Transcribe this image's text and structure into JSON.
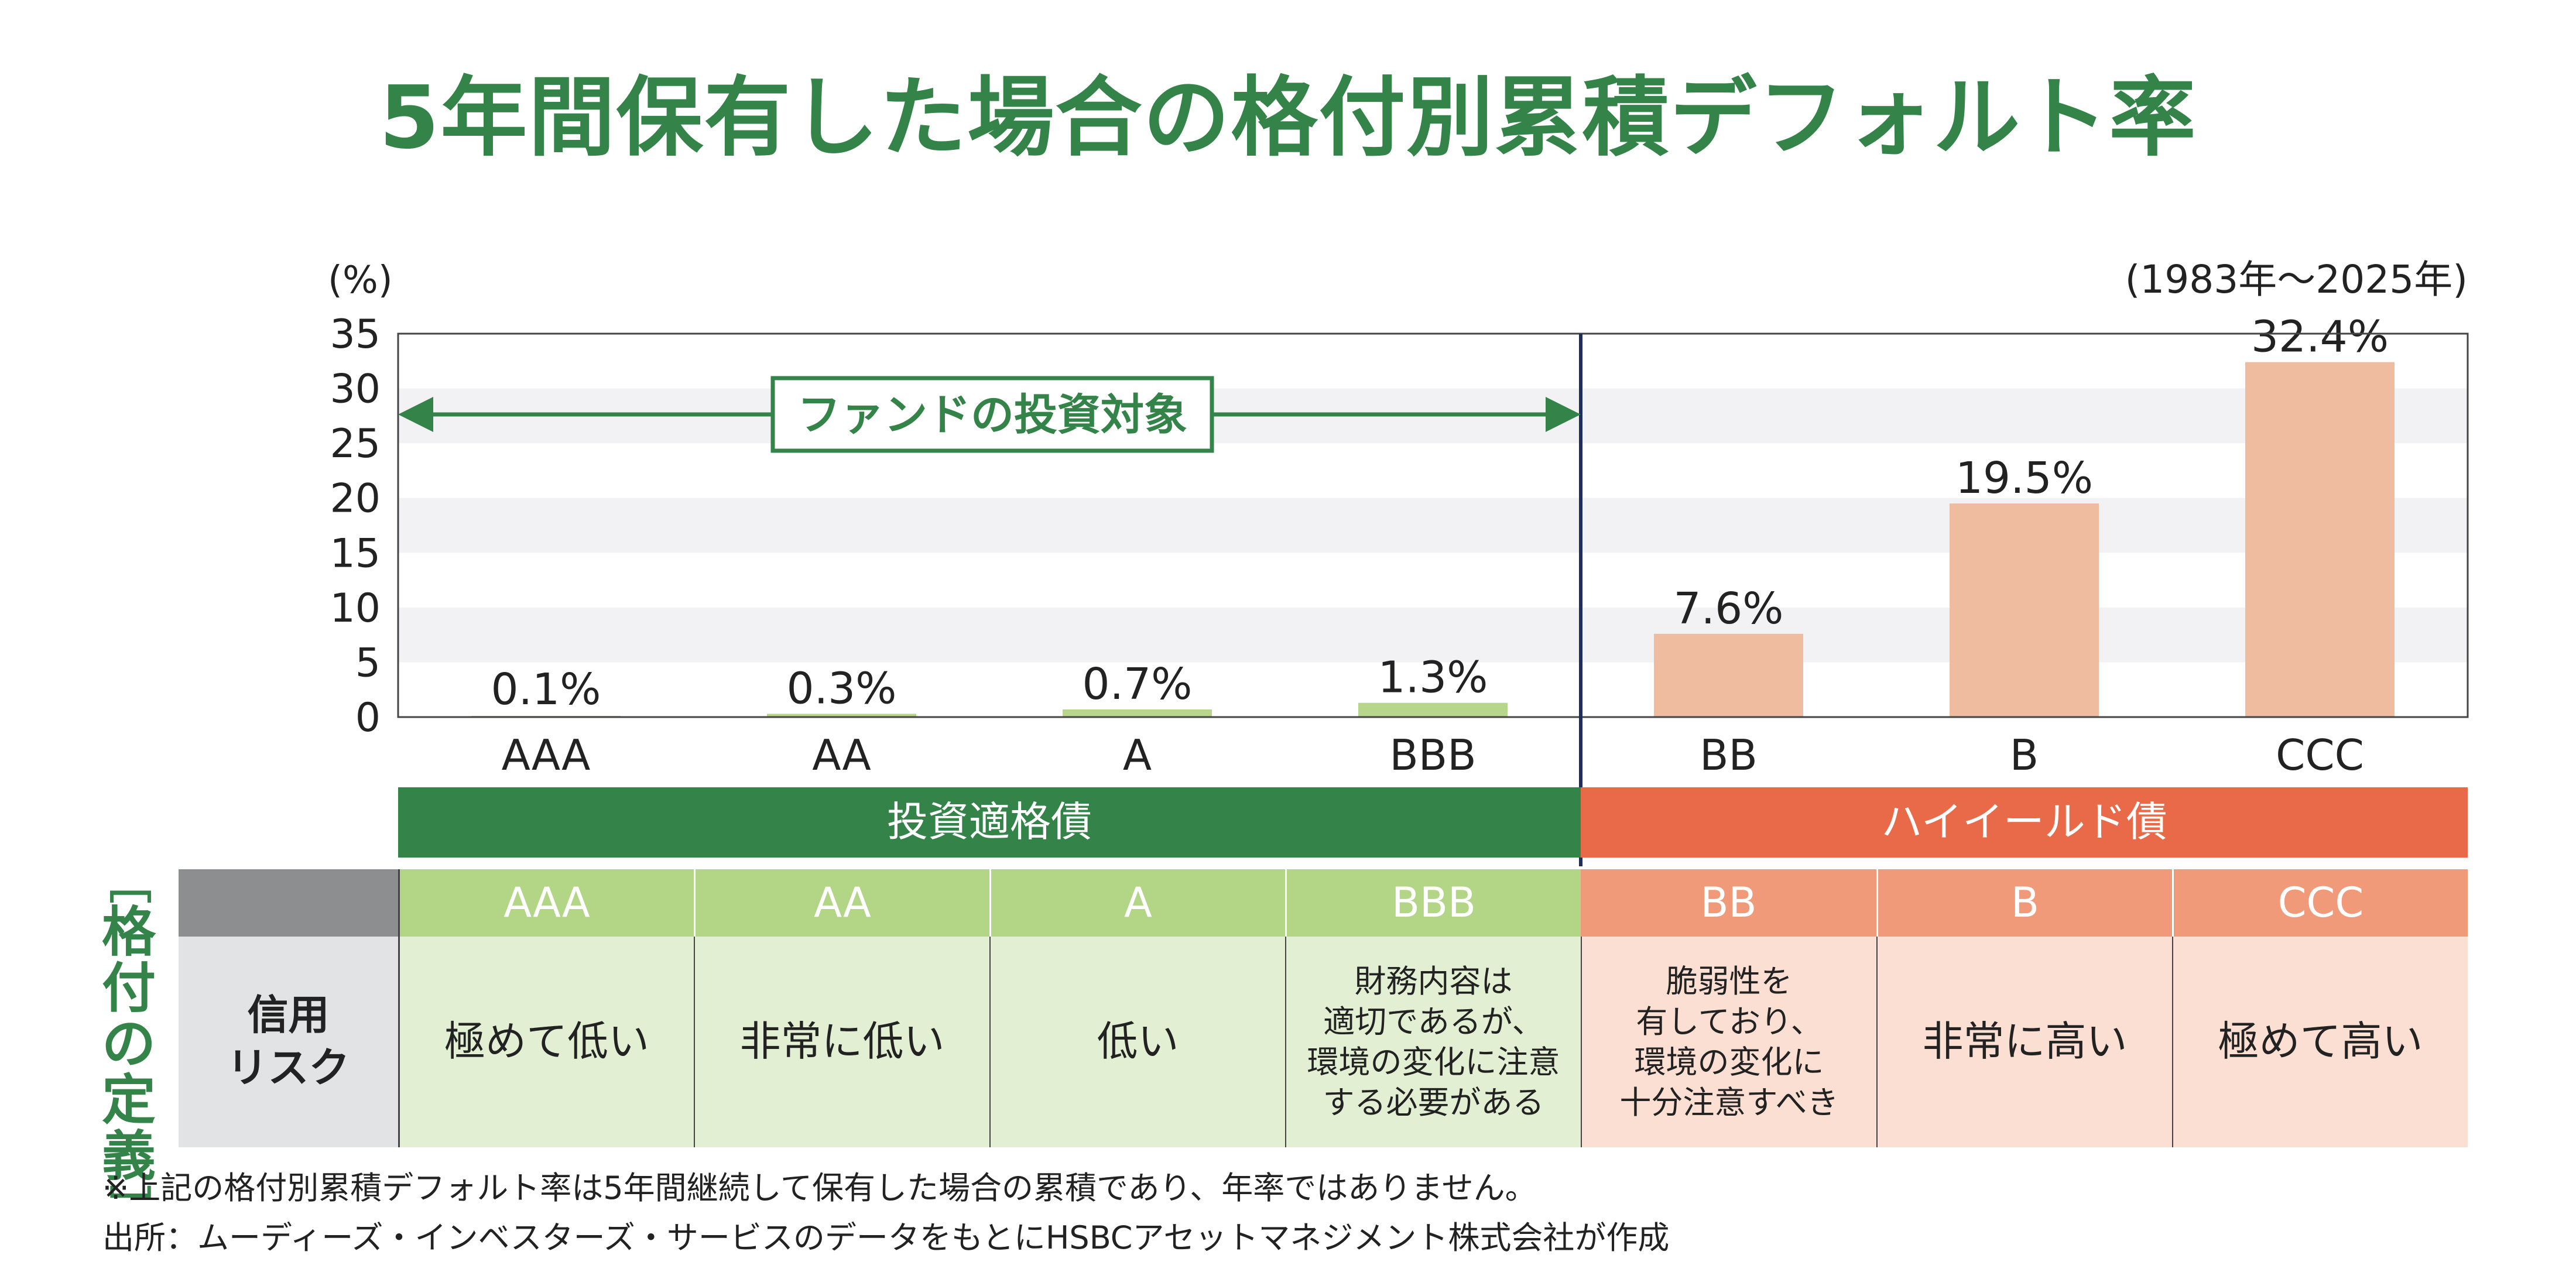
{
  "title": "5年間保有した場合の格付別累積デフォルト率",
  "colors": {
    "title": "#34844a",
    "ig_bar": "#b8d68a",
    "hy_bar": "#efbca0",
    "ig_header": "#34844a",
    "hy_header": "#e96a49",
    "ig_rating_row": "#b3d686",
    "hy_rating_row": "#f09a7a",
    "ig_cell": "#e2efd2",
    "hy_cell": "#fbdfd2",
    "gray_label": "#e2e3e5",
    "gray_dark": "#8d8e90",
    "divider": "#1f2e5a",
    "band": "#f2f2f4"
  },
  "chart_data": {
    "type": "bar",
    "ylabel": "(%)",
    "period": "(1983年～2025年)",
    "ylim": [
      0,
      35
    ],
    "yticks": [
      "0",
      "5",
      "10",
      "15",
      "20",
      "25",
      "30",
      "35"
    ],
    "categories": [
      "AAA",
      "AA",
      "A",
      "BBB",
      "BB",
      "B",
      "CCC"
    ],
    "values": [
      0.1,
      0.3,
      0.7,
      1.3,
      7.6,
      19.5,
      32.4
    ],
    "value_labels": [
      "0.1%",
      "0.3%",
      "0.7%",
      "1.3%",
      "7.6%",
      "19.5%",
      "32.4%"
    ],
    "annotation": "ファンドの投資対象"
  },
  "table": {
    "side_label": "［格付の定義］",
    "groups": [
      "投資適格債",
      "ハイイールド債"
    ],
    "ratings": [
      "AAA",
      "AA",
      "A",
      "BBB",
      "BB",
      "B",
      "CCC"
    ],
    "row_label": "信用\nリスク",
    "risks": [
      "極めて低い",
      "非常に低い",
      "低い",
      "財務内容は\n適切であるが、\n環境の変化に注意\nする必要がある",
      "脆弱性を\n有しており、\n環境の変化に\n十分注意すべき",
      "非常に高い",
      "極めて高い"
    ]
  },
  "footnote": "※上記の格付別累積デフォルト率は5年間継続して保有した場合の累積であり、年率ではありません。",
  "source": "出所：ムーディーズ・インベスターズ・サービスのデータをもとにHSBCアセットマネジメント株式会社が作成"
}
